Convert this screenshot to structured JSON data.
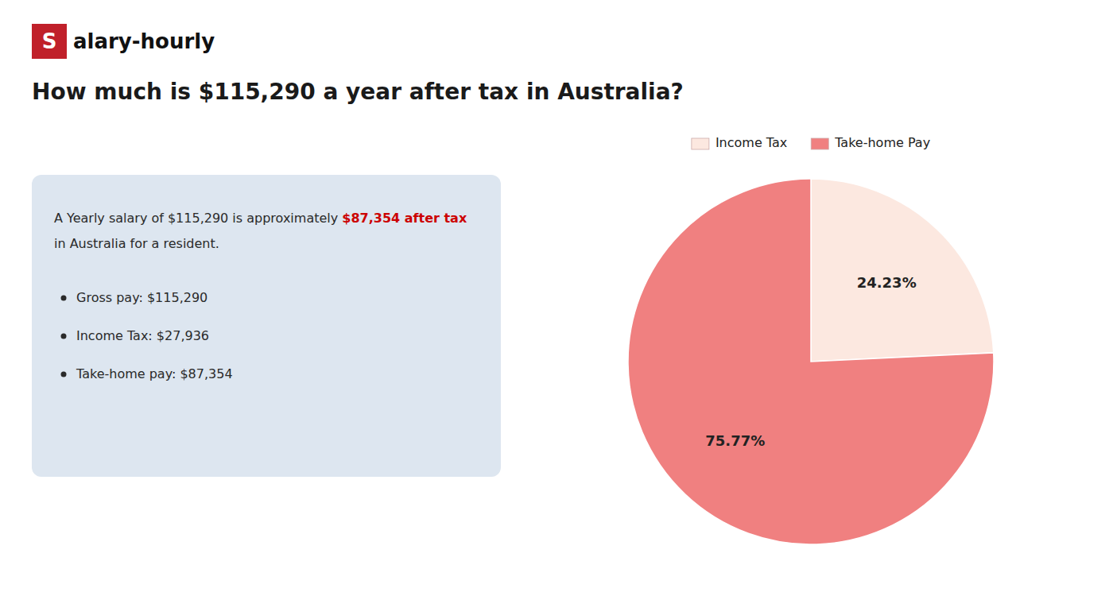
{
  "chart_data": {
    "type": "pie",
    "title": "How much is $115,290 a year after tax in Australia?",
    "categories": [
      "Income Tax",
      "Take-home Pay"
    ],
    "values": [
      24.23,
      75.77
    ],
    "value_labels": [
      "24.23%",
      "75.77%"
    ],
    "colors": [
      "#fce8e0",
      "#f08080"
    ],
    "data_labels": true,
    "legend": "top",
    "annotations": [
      {
        "text": "S",
        "color": "#c0202a"
      },
      {
        "text": "alary-hourly"
      },
      {
        "text": "A Yearly salary of $115,290 is approximately "
      },
      {
        "text": "$87,354 after tax",
        "color": "#cc0000"
      },
      {
        "text": "in Australia for a resident."
      },
      {
        "text": "Gross pay: $115,290"
      },
      {
        "text": "Income Tax: $27,936"
      },
      {
        "text": "Take-home pay: $87,354"
      }
    ]
  }
}
